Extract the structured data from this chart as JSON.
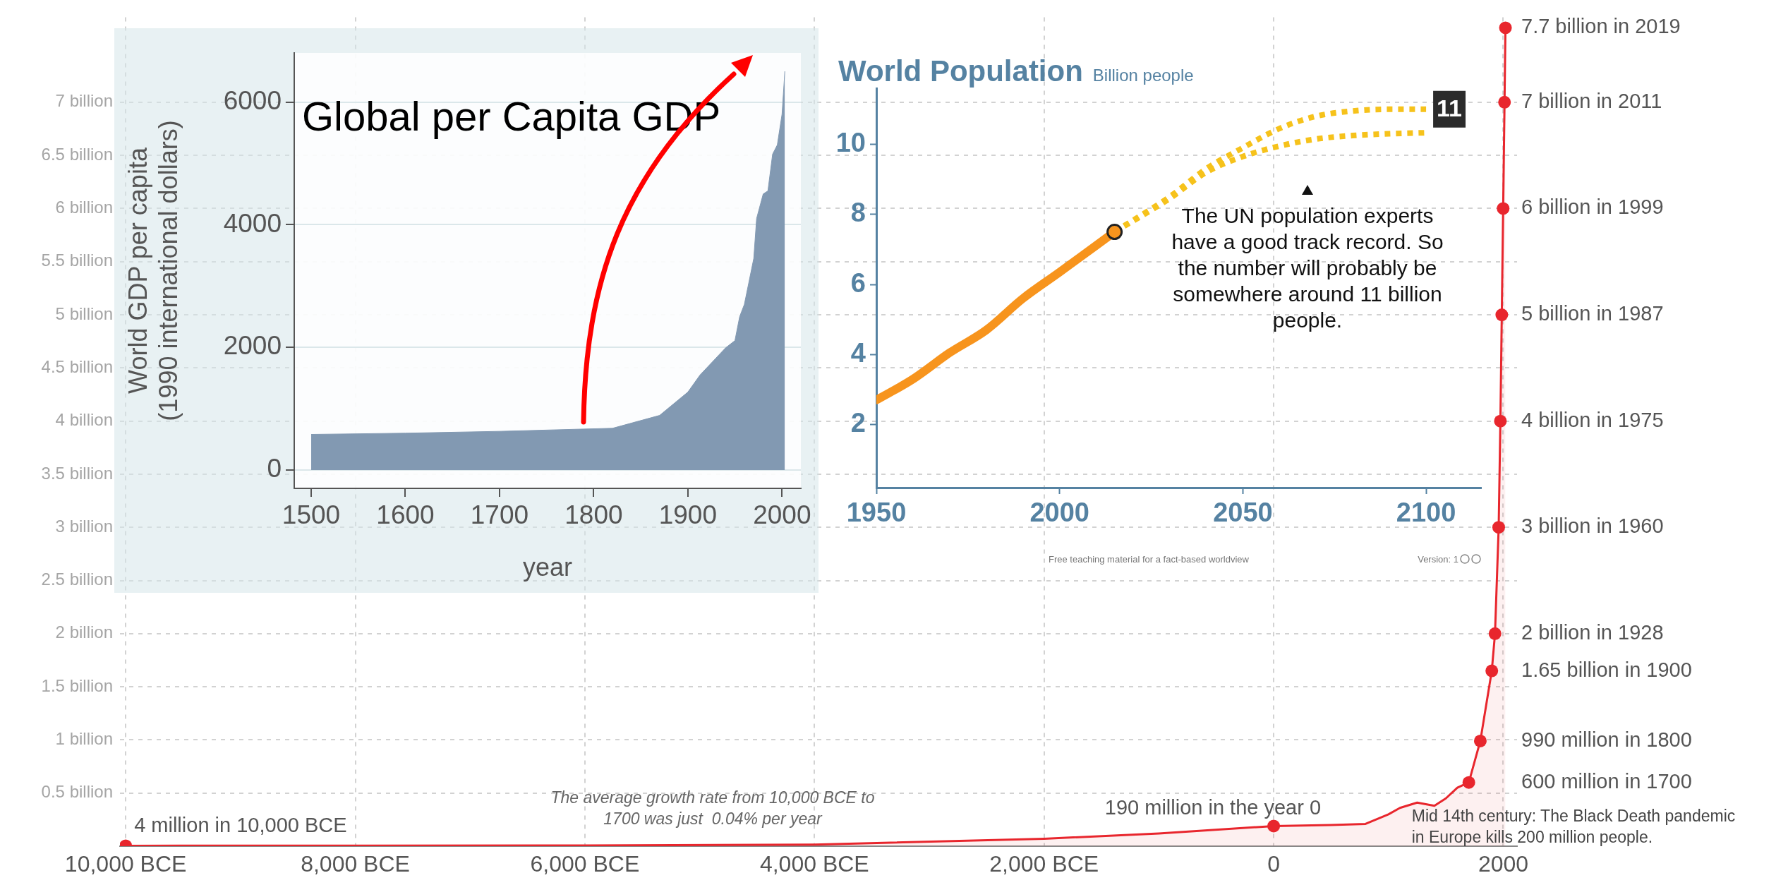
{
  "chart_data": [
    {
      "type": "area",
      "grid": true,
      "series": [
        {
          "color": "#e8262d",
          "marker": "none",
          "x": [
            -10000,
            -8000,
            -6000,
            -4000,
            -2000,
            -1000,
            0,
            500,
            800,
            1000,
            1100,
            1250,
            1400,
            1500,
            1600,
            1700,
            1800,
            1900,
            1928,
            1960,
            1975,
            1987,
            1999,
            2011,
            2019
          ],
          "values": [
            0.004,
            0.005,
            0.007,
            0.015,
            0.07,
            0.12,
            0.19,
            0.2,
            0.21,
            0.3,
            0.36,
            0.41,
            0.38,
            0.45,
            0.55,
            0.6,
            0.99,
            1.65,
            2,
            3,
            4,
            5,
            6,
            7,
            7.7
          ]
        },
        {
          "type": "scatter",
          "marker": "circle",
          "color": "#e8262d",
          "x": [
            -10000,
            0,
            1700,
            1800,
            1900,
            1928,
            1960,
            1975,
            1987,
            1999,
            2011,
            2019
          ],
          "values": [
            0.004,
            0.19,
            0.6,
            0.99,
            1.65,
            2,
            3,
            4,
            5,
            6,
            7,
            7.7
          ]
        }
      ],
      "xlim": [
        -10050,
        2120
      ],
      "xticks": [
        {
          "value": -10000,
          "label": "10,000 BCE"
        },
        {
          "value": -8000,
          "label": "8,000 BCE"
        },
        {
          "value": -6000,
          "label": "6,000 BCE"
        },
        {
          "value": -4000,
          "label": "4,000 BCE"
        },
        {
          "value": -2000,
          "label": "2,000 BCE"
        },
        0,
        2000
      ],
      "ylim": [
        0,
        7.8
      ],
      "yticks": [
        {
          "value": 0.5,
          "label": "0.5 billion"
        },
        {
          "value": 1,
          "label": "1 billion"
        },
        {
          "value": 1.5,
          "label": "1.5 billion"
        },
        {
          "value": 2,
          "label": "2 billion"
        },
        {
          "value": 2.5,
          "label": "2.5 billion"
        },
        {
          "value": 3,
          "label": "3 billion"
        },
        {
          "value": 3.5,
          "label": "3.5 billion"
        },
        {
          "value": 4,
          "label": "4 billion"
        },
        {
          "value": 4.5,
          "label": "4.5 billion"
        },
        {
          "value": 5,
          "label": "5 billion"
        },
        {
          "value": 5.5,
          "label": "5.5 billion"
        },
        {
          "value": 6,
          "label": "6 billion"
        },
        {
          "value": 6.5,
          "label": "6.5 billion"
        },
        {
          "value": 7,
          "label": "7 billion"
        }
      ],
      "annotations": [
        {
          "text": "7.7 billion in 2019",
          "x": 2019,
          "y": 7.7
        },
        {
          "text": "7 billion in 2011",
          "x": 2011,
          "y": 7
        },
        {
          "text": "6 billion in 1999",
          "x": 1999,
          "y": 6
        },
        {
          "text": "5 billion in 1987",
          "x": 1987,
          "y": 5
        },
        {
          "text": "4 billion in 1975",
          "x": 1975,
          "y": 4
        },
        {
          "text": "3 billion in 1960",
          "x": 1960,
          "y": 3
        },
        {
          "text": "2 billion in 1928",
          "x": 1928,
          "y": 2
        },
        {
          "text": "1.65 billion in 1900",
          "x": 1900,
          "y": 1.65
        },
        {
          "text": "990 million in 1800",
          "x": 1800,
          "y": 0.99
        },
        {
          "text": "600 million in 1700",
          "x": 1700,
          "y": 0.6
        },
        {
          "text": "4 million in 10,000 BCE",
          "x": -10000,
          "y": 0.004
        },
        {
          "text": "190 million in the year 0",
          "x": 0,
          "y": 0.19
        },
        {
          "text": "Mid 14th century: The Black Death pandemic in Europe kills 200 million people.",
          "x": 1350,
          "y": 0.38
        },
        "The average growth rate from 10,000 BCE to 1700 was just  0.04% per year"
      ]
    },
    {
      "type": "area",
      "title": "Global per Capita GDP",
      "xlabel": "year",
      "ylabel": "World GDP per capita\n(1990 international dollars)",
      "color": "#8299b2",
      "grid": "y",
      "x": [
        1500,
        1600,
        1700,
        1820,
        1870,
        1900,
        1913,
        1940,
        1950,
        1955,
        1960,
        1970,
        1973,
        1980,
        1985,
        1990,
        1995,
        2000,
        2003
      ],
      "values": [
        580,
        600,
        630,
        680,
        890,
        1270,
        1550,
        1990,
        2110,
        2500,
        2700,
        3450,
        4100,
        4500,
        4550,
        5150,
        5300,
        5800,
        6500
      ],
      "xlim": [
        1482,
        2020
      ],
      "xticks": [
        1500,
        1600,
        1700,
        1800,
        1900,
        2000
      ],
      "ylim": [
        -300,
        6800
      ],
      "yticks": [
        0,
        2000,
        4000,
        6000
      ]
    },
    {
      "type": "line",
      "title": "World Population",
      "subtitle": "Billion people",
      "series": [
        {
          "color": "#f7941d",
          "line_style": "solid",
          "marker": "none",
          "x": [
            1950,
            1960,
            1970,
            1980,
            1990,
            2000,
            2015
          ],
          "values": [
            2.7,
            3.3,
            4.05,
            4.7,
            5.6,
            6.35,
            7.5
          ]
        },
        {
          "color": "#f6c21b",
          "line_style": "dotted",
          "marker": "none",
          "x": [
            2015,
            2030,
            2040,
            2050,
            2060,
            2070,
            2080,
            2090,
            2100
          ],
          "values": [
            7.5,
            8.5,
            9.3,
            9.9,
            10.45,
            10.8,
            10.95,
            11,
            11
          ],
          "value_labels": [
            null,
            null,
            null,
            null,
            null,
            null,
            null,
            null,
            "11"
          ]
        },
        {
          "color": "#f6c21b",
          "line_style": "dotted",
          "marker": "none",
          "x": [
            2015,
            2030,
            2040,
            2050,
            2060,
            2070,
            2080,
            2090,
            2100
          ],
          "values": [
            7.5,
            8.45,
            9.2,
            9.65,
            9.95,
            10.15,
            10.25,
            10.3,
            10.33
          ]
        },
        {
          "type": "scatter",
          "marker": "circle",
          "color": "#f7941d",
          "x": [
            2015
          ],
          "values": [
            7.5
          ]
        }
      ],
      "xlim": [
        1950,
        2115
      ],
      "xticks": [
        1950,
        2000,
        2050,
        2100
      ],
      "ylim": [
        0.2,
        11.6
      ],
      "yticks": [
        2,
        4,
        6,
        8,
        10
      ],
      "annotations": [
        "The UN population experts have a good track record. So the number will probably be somewhere around 11 billion people.",
        "Free teaching material for a fact-based worldview",
        "Version: 1"
      ]
    }
  ]
}
